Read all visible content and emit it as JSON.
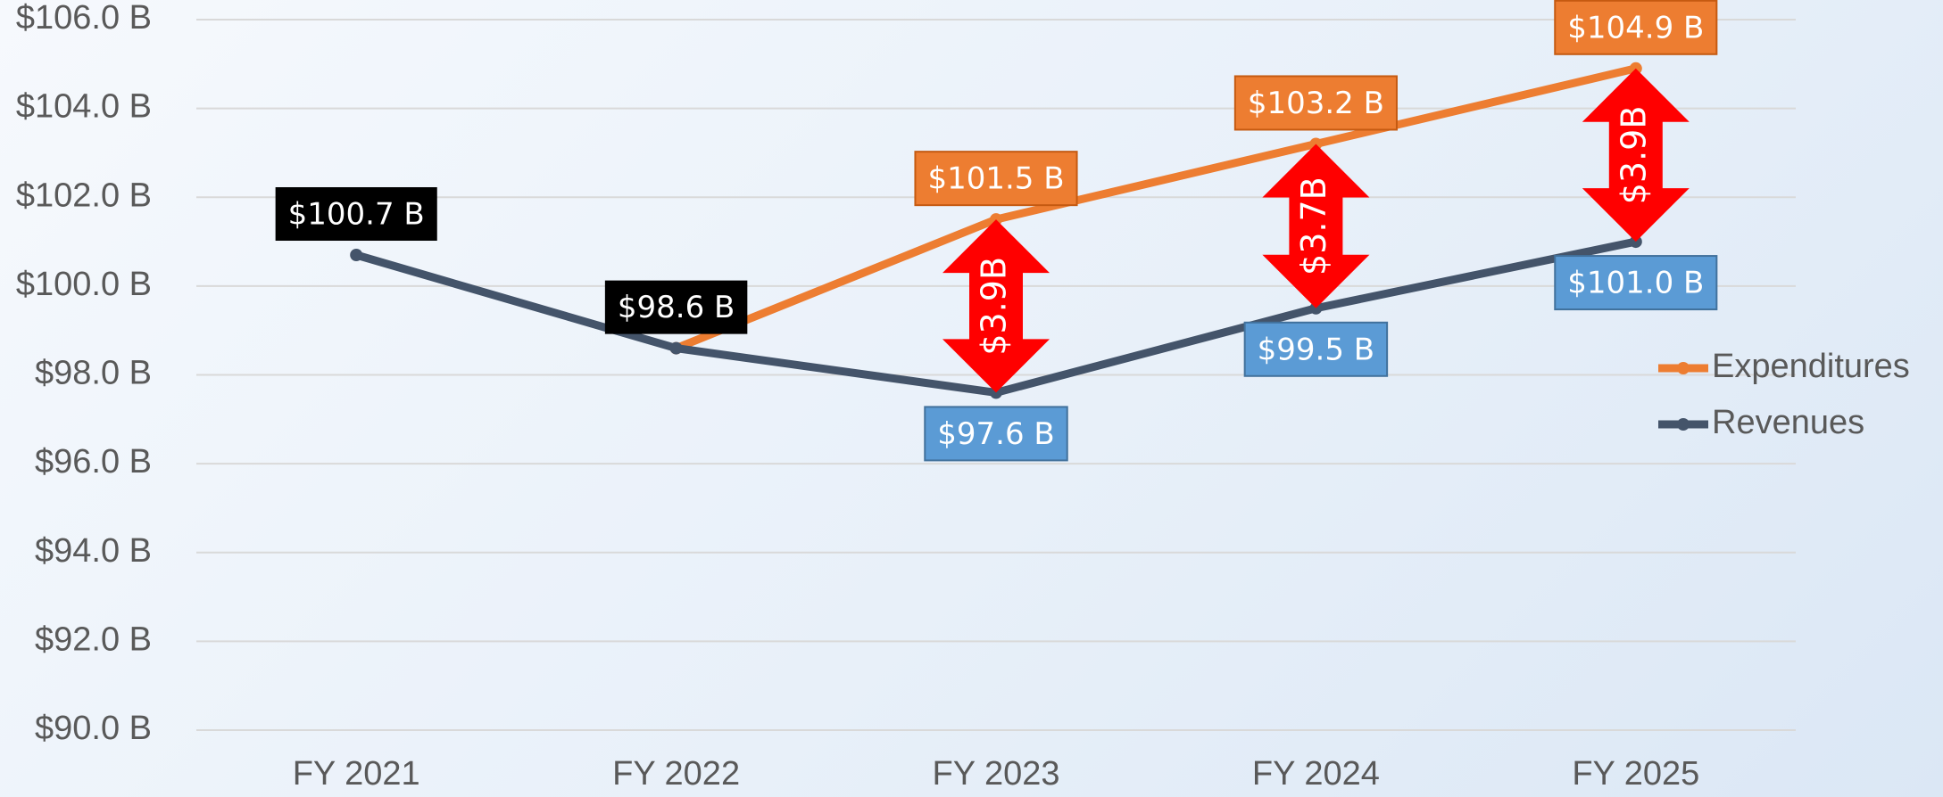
{
  "chart_data": {
    "type": "line",
    "categories": [
      "FY 2021",
      "FY 2022",
      "FY 2023",
      "FY 2024",
      "FY 2025"
    ],
    "series": [
      {
        "name": "Expenditures",
        "color": "#ed7d31",
        "values": [
          null,
          98.6,
          101.5,
          103.2,
          104.9
        ],
        "value_labels": [
          null,
          null,
          "$101.5 B",
          "$103.2 B",
          "$104.9 B"
        ],
        "value_label_colors": [
          null,
          null,
          "#ed7d31",
          "#ed7d31",
          "#ed7d31"
        ]
      },
      {
        "name": "Revenues",
        "color": "#44546a",
        "values": [
          100.7,
          98.6,
          97.6,
          99.5,
          101.0
        ],
        "value_labels": [
          "$100.7 B",
          "$98.6 B",
          "$97.6 B",
          "$99.5 B",
          "$101.0 B"
        ],
        "value_label_colors": [
          "#000000",
          "#000000",
          "#5b9bd5",
          "#5b9bd5",
          "#5b9bd5"
        ]
      }
    ],
    "gaps": {
      "categories": [
        "FY 2023",
        "FY 2024",
        "FY 2025"
      ],
      "values": [
        3.9,
        3.7,
        3.9
      ],
      "labels": [
        "$3.9B",
        "$3.7B",
        "$3.9B"
      ],
      "color": "#ff0000"
    },
    "ylim": [
      90,
      106
    ],
    "yticks": [
      {
        "value": 90,
        "label": "$90.0 B"
      },
      {
        "value": 92,
        "label": "$92.0 B"
      },
      {
        "value": 94,
        "label": "$94.0 B"
      },
      {
        "value": 96,
        "label": "$96.0 B"
      },
      {
        "value": 98,
        "label": "$98.0 B"
      },
      {
        "value": 100,
        "label": "$100.0 B"
      },
      {
        "value": 102,
        "label": "$102.0 B"
      },
      {
        "value": 104,
        "label": "$104.0 B"
      },
      {
        "value": 106,
        "label": "$106.0 B"
      }
    ],
    "grid": true,
    "legend": "right"
  }
}
